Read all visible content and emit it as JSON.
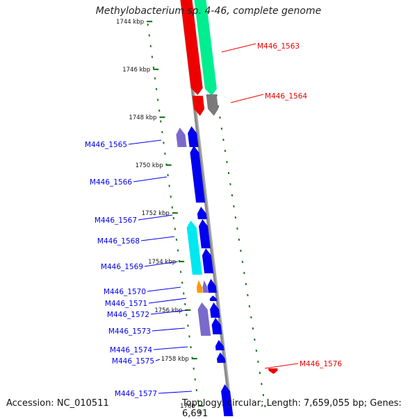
{
  "title": "Methylobacterium sp. 4-46, complete genome",
  "footer": {
    "accession": "Accession: NC_010511",
    "summary": "Topology: circular; Length: 7,659,055 bp; Genes: 6,691"
  },
  "colors": {
    "backbone": "#8c8c8c",
    "tick": "#1f7a1f",
    "blue": "#0000ee",
    "red": "#ee0000",
    "slate": "#7a6acc",
    "cyan": "#00e8f0",
    "green": "#00ee90",
    "gray": "#7a7a7a",
    "orange": "#ff9a00"
  },
  "scale_labels": [
    "1744 kbp",
    "1746 kbp",
    "1748 kbp",
    "1750 kbp",
    "1752 kbp",
    "1754 kbp",
    "1756 kbp",
    "1758 kbp",
    "1760"
  ],
  "gene_labels": [
    {
      "text": "M446_1563",
      "color": "red"
    },
    {
      "text": "M446_1564",
      "color": "red"
    },
    {
      "text": "M446_1565",
      "color": "blue"
    },
    {
      "text": "M446_1566",
      "color": "blue"
    },
    {
      "text": "M446_1567",
      "color": "blue"
    },
    {
      "text": "M446_1568",
      "color": "blue"
    },
    {
      "text": "M446_1569",
      "color": "blue"
    },
    {
      "text": "M446_1570",
      "color": "blue"
    },
    {
      "text": "M446_1571",
      "color": "blue"
    },
    {
      "text": "M446_1572",
      "color": "blue"
    },
    {
      "text": "M446_1573",
      "color": "blue"
    },
    {
      "text": "M446_1574",
      "color": "blue"
    },
    {
      "text": "M446_1575",
      "color": "blue"
    },
    {
      "text": "M446_1576",
      "color": "red"
    },
    {
      "text": "M446_1577",
      "color": "blue"
    }
  ],
  "features": [
    {
      "color": "red",
      "strand": "forward"
    },
    {
      "color": "green",
      "strand": "forward"
    },
    {
      "color": "red",
      "strand": "forward"
    },
    {
      "color": "gray",
      "strand": "forward"
    },
    {
      "color": "slate",
      "strand": "reverse"
    },
    {
      "color": "blue",
      "strand": "reverse"
    },
    {
      "color": "blue",
      "strand": "reverse"
    },
    {
      "color": "blue",
      "strand": "reverse"
    },
    {
      "color": "cyan",
      "strand": "reverse"
    },
    {
      "color": "blue",
      "strand": "reverse"
    },
    {
      "color": "blue",
      "strand": "reverse"
    },
    {
      "color": "orange",
      "strand": "reverse"
    },
    {
      "color": "slate",
      "strand": "reverse"
    },
    {
      "color": "blue",
      "strand": "reverse"
    },
    {
      "color": "blue",
      "strand": "reverse"
    },
    {
      "color": "slate",
      "strand": "reverse"
    },
    {
      "color": "blue",
      "strand": "reverse"
    },
    {
      "color": "blue",
      "strand": "reverse"
    },
    {
      "color": "blue",
      "strand": "reverse"
    },
    {
      "color": "blue",
      "strand": "reverse"
    },
    {
      "color": "red",
      "strand": "forward"
    },
    {
      "color": "blue",
      "strand": "reverse"
    }
  ]
}
